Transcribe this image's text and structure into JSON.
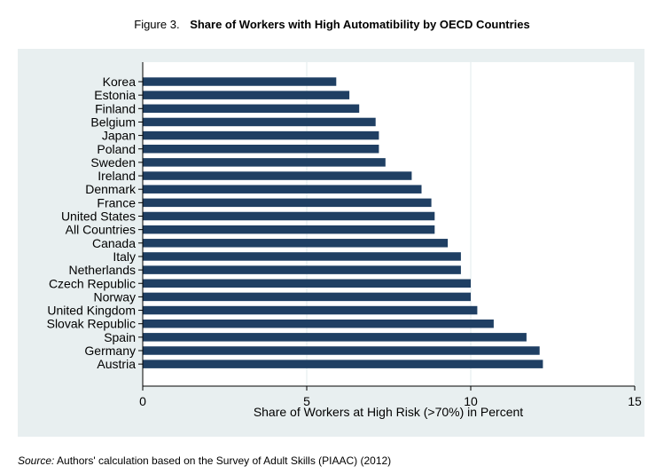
{
  "figure": {
    "label": "Figure 3.",
    "title": "Share of Workers with High Automatibility by OECD Countries"
  },
  "source": {
    "label": "Source:",
    "text": "Authors' calculation based on the Survey of Adult Skills (PIAAC) (2012)"
  },
  "colors": {
    "bar": "#1f3f63",
    "panel": "#e8eff0",
    "plot": "#ffffff",
    "grid": "#e6eef0"
  },
  "chart_data": {
    "type": "bar",
    "orientation": "horizontal",
    "title": "Share of Workers with High Automatibility by OECD Countries",
    "xlabel": "Share of Workers at High Risk (>70%) in Percent",
    "ylabel": "",
    "xlim": [
      0,
      15
    ],
    "xticks": [
      0,
      5,
      10,
      15
    ],
    "grid": true,
    "categories": [
      "Korea",
      "Estonia",
      "Finland",
      "Belgium",
      "Japan",
      "Poland",
      "Sweden",
      "Ireland",
      "Denmark",
      "France",
      "United States",
      "All Countries",
      "Canada",
      "Italy",
      "Netherlands",
      "Czech Republic",
      "Norway",
      "United Kingdom",
      "Slovak Republic",
      "Spain",
      "Germany",
      "Austria"
    ],
    "values": [
      5.9,
      6.3,
      6.6,
      7.1,
      7.2,
      7.2,
      7.4,
      8.2,
      8.5,
      8.8,
      8.9,
      8.9,
      9.3,
      9.7,
      9.7,
      10.0,
      10.0,
      10.2,
      10.7,
      11.7,
      12.1,
      12.2
    ]
  }
}
